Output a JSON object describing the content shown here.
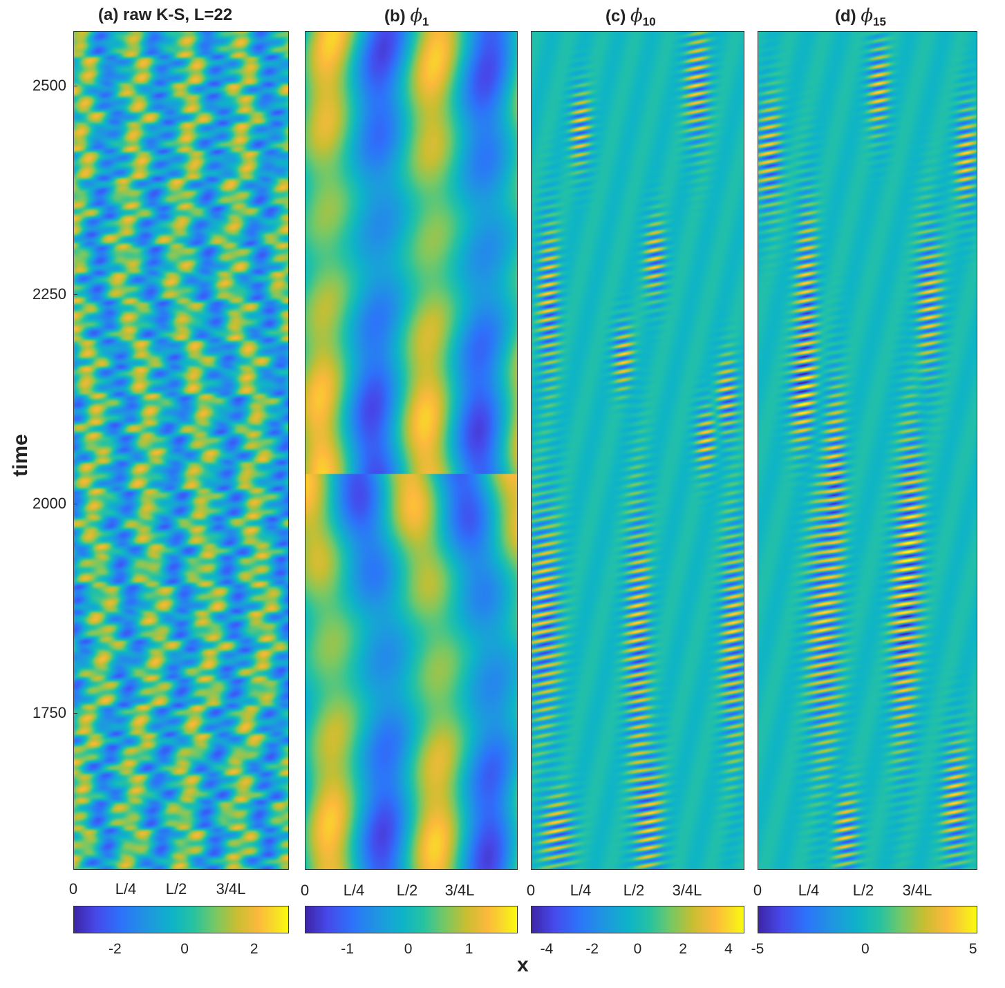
{
  "chart_data": [
    {
      "type": "heatmap",
      "panel": "(a)",
      "title": "(a) raw K-S, L=22",
      "xlabel": "x",
      "ylabel": "time",
      "xticks": [
        "0",
        "L/4",
        "L/2",
        "3/4L"
      ],
      "yticks": [
        1750,
        2000,
        2250,
        2500
      ],
      "ylim": [
        1590,
        2560
      ],
      "colorbar": {
        "ticks": [
          -2,
          0,
          2
        ],
        "range": [
          -3.2,
          3.0
        ]
      },
      "colormap": "parula"
    },
    {
      "type": "heatmap",
      "panel": "(b)",
      "title_prefix": "(b) ",
      "mode_symbol": "ϕ",
      "mode_index": "1",
      "xticks": [
        "0",
        "L/4",
        "L/2",
        "3/4L"
      ],
      "ylim": [
        1590,
        2560
      ],
      "colorbar": {
        "ticks": [
          -1,
          0,
          1
        ],
        "range": [
          -1.7,
          1.8
        ]
      },
      "colormap": "parula"
    },
    {
      "type": "heatmap",
      "panel": "(c)",
      "title_prefix": "(c) ",
      "mode_symbol": "ϕ",
      "mode_index": "10",
      "xticks": [
        "0",
        "L/4",
        "L/2",
        "3/4L"
      ],
      "ylim": [
        1590,
        2560
      ],
      "colorbar": {
        "ticks": [
          -4,
          -2,
          0,
          2,
          4
        ],
        "range": [
          -4.7,
          4.7
        ]
      },
      "colormap": "parula"
    },
    {
      "type": "heatmap",
      "panel": "(d)",
      "title_prefix": "(d) ",
      "mode_symbol": "ϕ",
      "mode_index": "15",
      "xticks": [
        "0",
        "L/4",
        "L/2",
        "3/4L"
      ],
      "ylim": [
        1590,
        2560
      ],
      "colorbar": {
        "ticks": [
          -5,
          0,
          5
        ],
        "range": [
          -5.0,
          5.2
        ]
      },
      "colormap": "parula"
    }
  ],
  "labels": {
    "y_axis": "time",
    "x_axis": "x",
    "title_a": "(a) raw K-S, L=22",
    "title_b_prefix": "(b) ",
    "title_c_prefix": "(c) ",
    "title_d_prefix": "(d) ",
    "phi": "ϕ",
    "sub_b": "1",
    "sub_c": "10",
    "sub_d": "15",
    "ytick_1750": "1750",
    "ytick_2000": "2000",
    "ytick_2250": "2250",
    "ytick_2500": "2500",
    "xt0": "0",
    "xt1": "L/4",
    "xt2": "L/2",
    "xt3": "3/4L",
    "cb_a": [
      "-2",
      "0",
      "2"
    ],
    "cb_b": [
      "-1",
      "0",
      "1"
    ],
    "cb_c": [
      "-4",
      "-2",
      "0",
      "2",
      "4"
    ],
    "cb_d": [
      "-5",
      "0",
      "5"
    ]
  }
}
